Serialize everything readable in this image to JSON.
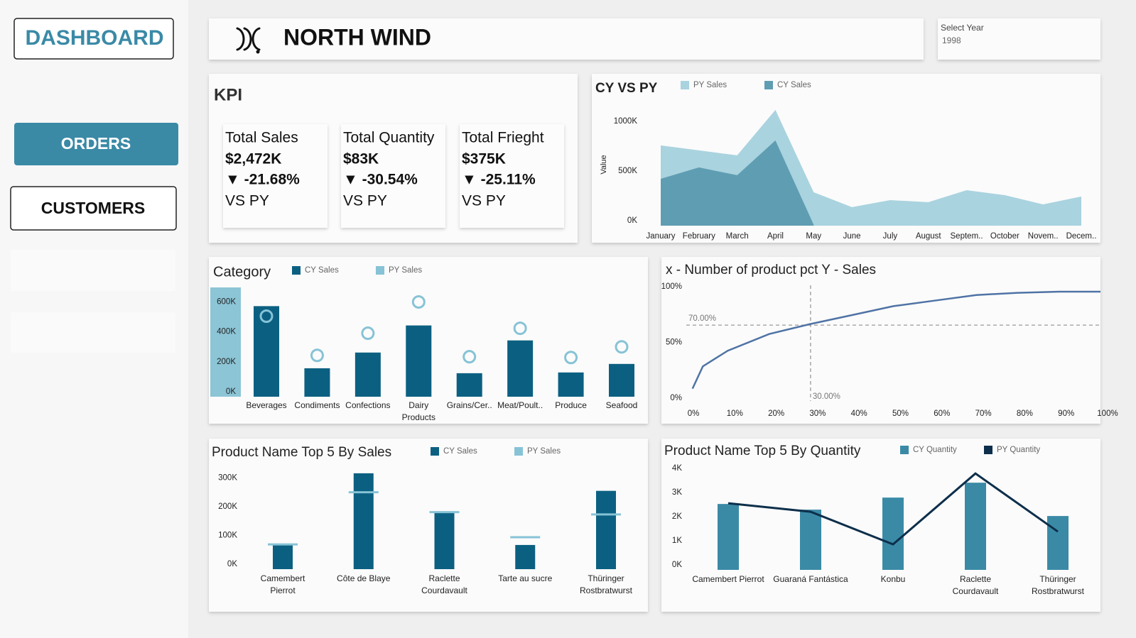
{
  "nav": {
    "title": "DASHBOARD",
    "items": [
      "ORDERS",
      "CUSTOMERS"
    ]
  },
  "header": {
    "title": "NORTH WIND"
  },
  "filter": {
    "label": "Select Year",
    "value": "1998"
  },
  "kpi": {
    "title": "KPI",
    "cards": [
      {
        "name": "Total Sales",
        "value": "$2,472K",
        "change": "▼ -21.68%",
        "compare": "VS PY"
      },
      {
        "name": "Total Quantity",
        "value": "$83K",
        "change": "▼ -30.54%",
        "compare": "VS PY"
      },
      {
        "name": "Total Frieght",
        "value": "$375K",
        "change": "▼ -25.11%",
        "compare": "VS PY"
      }
    ]
  },
  "chart_data": [
    {
      "type": "area",
      "title": "CY VS PY",
      "y_label": "Value",
      "categories": [
        "January",
        "February",
        "March",
        "April",
        "May",
        "June",
        "July",
        "August",
        "Septem..",
        "October",
        "Novem..",
        "Decem.."
      ],
      "series": [
        {
          "name": "PY Sales",
          "color": "#a9d3df",
          "values": [
            807000,
            757000,
            707000,
            1164000,
            336000,
            186000,
            257000,
            236000,
            357000,
            307000,
            214000,
            293000
          ]
        },
        {
          "name": "CY Sales",
          "color": "#5f9db2",
          "values": [
            471000,
            586000,
            507000,
            857000,
            10000,
            null,
            null,
            null,
            null,
            null,
            null,
            null
          ]
        }
      ],
      "ylim": [
        0,
        1220000
      ],
      "yticks": [
        {
          "value": 0,
          "label": "0K"
        },
        {
          "value": 500000,
          "label": "500K"
        },
        {
          "value": 1000000,
          "label": "1000K"
        }
      ]
    },
    {
      "type": "bar",
      "title": "Category",
      "categories": [
        "Beverages",
        "Condiments",
        "Confections",
        "Dairy Products",
        "Grains/Cer..",
        "Meat/Poult..",
        "Produce",
        "Seafood"
      ],
      "series": [
        {
          "name": "CY Sales",
          "color": "#0b6082",
          "values": [
            605000,
            190000,
            295000,
            476000,
            157000,
            376000,
            162000,
            219000
          ]
        },
        {
          "name": "PY Sales",
          "color": "#87c3d6",
          "style": "circle",
          "values": [
            538000,
            276000,
            424000,
            633000,
            267000,
            457000,
            262000,
            333000
          ]
        }
      ],
      "ylim": [
        0,
        730000
      ],
      "yticks": [
        {
          "value": 0,
          "label": "0K"
        },
        {
          "value": 200000,
          "label": "200K"
        },
        {
          "value": 400000,
          "label": "400K"
        },
        {
          "value": 600000,
          "label": "600K"
        }
      ]
    },
    {
      "type": "line",
      "title": "x - Number of product pct Y - Sales",
      "color": "#4f73a5",
      "x": [
        1.5,
        4,
        7,
        10,
        20,
        30,
        40,
        50,
        60,
        70,
        80,
        90,
        100
      ],
      "values": [
        13,
        33,
        40,
        47,
        62,
        71,
        79,
        87,
        92,
        97,
        99,
        100,
        100
      ],
      "xlim": [
        0,
        100
      ],
      "ylim": [
        0,
        100
      ],
      "xticks": [
        {
          "value": 0,
          "label": "0%"
        },
        {
          "value": 10,
          "label": "10%"
        },
        {
          "value": 20,
          "label": "20%"
        },
        {
          "value": 30,
          "label": "30%"
        },
        {
          "value": 40,
          "label": "40%"
        },
        {
          "value": 50,
          "label": "50%"
        },
        {
          "value": 60,
          "label": "60%"
        },
        {
          "value": 70,
          "label": "70%"
        },
        {
          "value": 80,
          "label": "80%"
        },
        {
          "value": 90,
          "label": "90%"
        },
        {
          "value": 100,
          "label": "100%"
        }
      ],
      "yticks": [
        {
          "value": 0,
          "label": "0%"
        },
        {
          "value": 50,
          "label": "50%"
        },
        {
          "value": 100,
          "label": "100%"
        }
      ],
      "reference_lines": [
        {
          "axis": "y",
          "value": 70,
          "label": "70.00%"
        },
        {
          "axis": "x",
          "value": 30,
          "label": "30.00%"
        }
      ]
    },
    {
      "type": "bar",
      "title": "Product Name Top 5 By Sales",
      "categories": [
        "Camembert Pierrot",
        "Côte de Blaye",
        "Raclette Courdavault",
        "Tarte au sucre",
        "Thüringer Rostbratwurst"
      ],
      "series": [
        {
          "name": "CY Sales",
          "color": "#0b6082",
          "values": [
            84000,
            333000,
            195000,
            84000,
            272000
          ]
        },
        {
          "name": "PY Sales",
          "color": "#87c3d6",
          "style": "dash",
          "values": [
            86000,
            267000,
            198000,
            111000,
            190000
          ]
        }
      ],
      "ylim": [
        0,
        350000
      ],
      "yticks": [
        {
          "value": 0,
          "label": "0K"
        },
        {
          "value": 100000,
          "label": "100K"
        },
        {
          "value": 200000,
          "label": "200K"
        },
        {
          "value": 300000,
          "label": "300K"
        }
      ]
    },
    {
      "type": "bar",
      "title": "Product Name Top 5 By Quantity",
      "categories": [
        "Camembert Pierrot",
        "Guaraná Fantástica",
        "Konbu",
        "Raclette Courdavault",
        "Thüringer Rostbratwurst"
      ],
      "series": [
        {
          "name": "CY Quantity",
          "color": "#3a8aa6",
          "values": [
            2735,
            2500,
            3000,
            3618,
            2235
          ]
        },
        {
          "name": "PY Quantity",
          "color": "#0d2f4b",
          "style": "line",
          "values": [
            2765,
            2412,
            1059,
            4000,
            1588
          ]
        }
      ],
      "ylim": [
        0,
        4300
      ],
      "yticks": [
        {
          "value": 0,
          "label": "0K"
        },
        {
          "value": 1000,
          "label": "1K"
        },
        {
          "value": 2000,
          "label": "2K"
        },
        {
          "value": 3000,
          "label": "3K"
        },
        {
          "value": 4000,
          "label": "4K"
        }
      ]
    }
  ]
}
